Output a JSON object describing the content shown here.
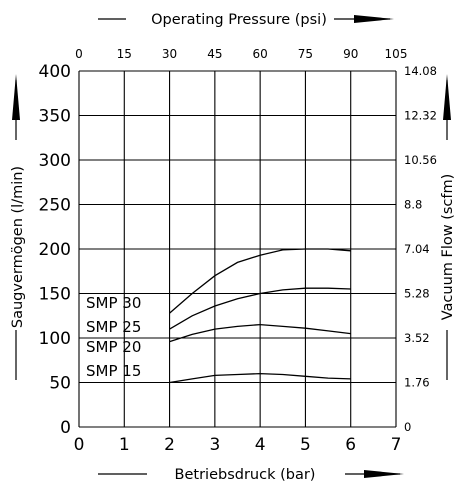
{
  "chart_data": {
    "type": "line",
    "title": "",
    "xlabel": "Betriebsdruck (bar)",
    "ylabel": "Saugvermögen (l/min)",
    "x_top_label": "Operating Pressure (psi)",
    "y_right_label": "Vacuum Flow (scfm)",
    "xlim": [
      0,
      7
    ],
    "ylim": [
      0,
      400
    ],
    "x_ticks": [
      "0",
      "1",
      "2",
      "3",
      "4",
      "5",
      "6",
      "7"
    ],
    "y_ticks": [
      "0",
      "50",
      "100",
      "150",
      "200",
      "250",
      "300",
      "350",
      "400"
    ],
    "x_top_ticks": [
      "0",
      "15",
      "30",
      "45",
      "60",
      "75",
      "90",
      "105"
    ],
    "y_right_ticks": [
      "0",
      "1.76",
      "3.52",
      "5.28",
      "7.04",
      "8.8",
      "10.56",
      "12.32",
      "14.08"
    ],
    "grid": true,
    "legend": "none",
    "series": [
      {
        "name": "SMP 30",
        "x": [
          2,
          2.5,
          3,
          3.5,
          4,
          4.5,
          5,
          5.5,
          6
        ],
        "y": [
          128,
          150,
          170,
          185,
          193,
          199,
          200,
          200,
          198
        ]
      },
      {
        "name": "SMP 25",
        "x": [
          2,
          2.5,
          3,
          3.5,
          4,
          4.5,
          5,
          5.5,
          6
        ],
        "y": [
          110,
          125,
          136,
          144,
          150,
          154,
          156,
          156,
          155
        ]
      },
      {
        "name": "SMP 20",
        "x": [
          2,
          2.5,
          3,
          3.5,
          4,
          4.5,
          5,
          5.5,
          6
        ],
        "y": [
          96,
          104,
          110,
          113,
          115,
          113,
          111,
          108,
          105
        ]
      },
      {
        "name": "SMP 15",
        "x": [
          2,
          2.5,
          3,
          3.5,
          4,
          4.5,
          5,
          5.5,
          6
        ],
        "y": [
          50,
          54,
          58,
          59,
          60,
          59,
          57,
          55,
          54
        ]
      }
    ]
  }
}
